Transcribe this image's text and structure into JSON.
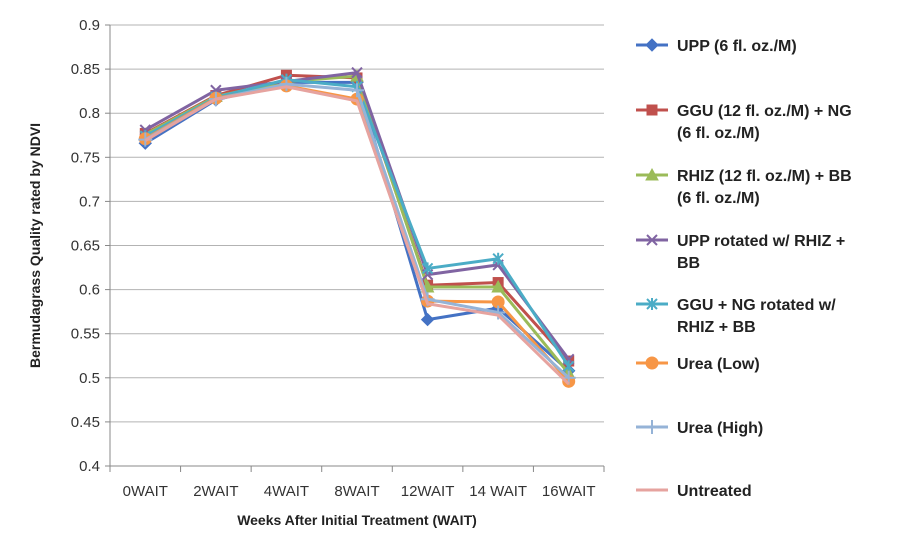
{
  "chart_data": {
    "type": "line",
    "title": "",
    "xlabel": "Weeks After Initial Treatment (WAIT)",
    "ylabel": "Bermudagrass Quality rated by NDVI",
    "ylim": [
      0.4,
      0.9
    ],
    "yticks": [
      "0.4",
      "0.45",
      "0.5",
      "0.55",
      "0.6",
      "0.65",
      "0.7",
      "0.75",
      "0.8",
      "0.85",
      "0.9"
    ],
    "categories": [
      "0WAIT",
      "2WAIT",
      "4WAIT",
      "8WAIT",
      "12WAIT",
      "14 WAIT",
      "16WAIT"
    ],
    "grid": "horizontal",
    "legend_position": "right",
    "series": [
      {
        "name": "UPP (6 fl. oz./M)",
        "color": "#4472C4",
        "marker": "diamond",
        "values": [
          0.766,
          0.815,
          0.835,
          0.835,
          0.566,
          0.579,
          0.508
        ]
      },
      {
        "name": "GGU (12 fl. oz./M) + NG (6 fl. oz./M)",
        "color": "#C0504D",
        "marker": "square",
        "values": [
          0.777,
          0.82,
          0.843,
          0.84,
          0.605,
          0.608,
          0.519
        ]
      },
      {
        "name": "RHIZ (12 fl. oz./M) + BB (6 fl. oz./M)",
        "color": "#9BBB59",
        "marker": "triangle",
        "values": [
          0.776,
          0.819,
          0.836,
          0.842,
          0.603,
          0.603,
          0.505
        ]
      },
      {
        "name": "UPP rotated w/ RHIZ + BB",
        "color": "#8064A2",
        "marker": "x",
        "values": [
          0.781,
          0.826,
          0.836,
          0.846,
          0.617,
          0.628,
          0.521
        ]
      },
      {
        "name": "GGU + NG rotated w/ RHIZ + BB",
        "color": "#4BACC6",
        "marker": "star",
        "values": [
          0.774,
          0.818,
          0.838,
          0.83,
          0.624,
          0.635,
          0.513
        ]
      },
      {
        "name": "Urea (Low)",
        "color": "#F79646",
        "marker": "circle",
        "values": [
          0.771,
          0.817,
          0.831,
          0.816,
          0.587,
          0.586,
          0.496
        ]
      },
      {
        "name": "Urea (High)",
        "color": "#95B3D7",
        "marker": "plus",
        "values": [
          0.77,
          0.816,
          0.833,
          0.826,
          0.589,
          0.574,
          0.5
        ]
      },
      {
        "name": "Untreated",
        "color": "#E6A39F",
        "marker": "none",
        "values": [
          0.769,
          0.816,
          0.83,
          0.814,
          0.584,
          0.571,
          0.493
        ]
      }
    ],
    "legend_lines": [
      [
        "UPP (6 fl. oz./M)"
      ],
      [
        "GGU (12 fl. oz./M) + NG",
        "(6 fl. oz./M)"
      ],
      [
        "RHIZ (12 fl. oz./M) + BB",
        "(6 fl. oz./M)"
      ],
      [
        "UPP rotated w/ RHIZ +",
        "BB"
      ],
      [
        "GGU + NG rotated w/",
        "RHIZ + BB"
      ],
      [
        "Urea (Low)"
      ],
      [
        "Urea (High)"
      ],
      [
        "Untreated"
      ]
    ]
  }
}
